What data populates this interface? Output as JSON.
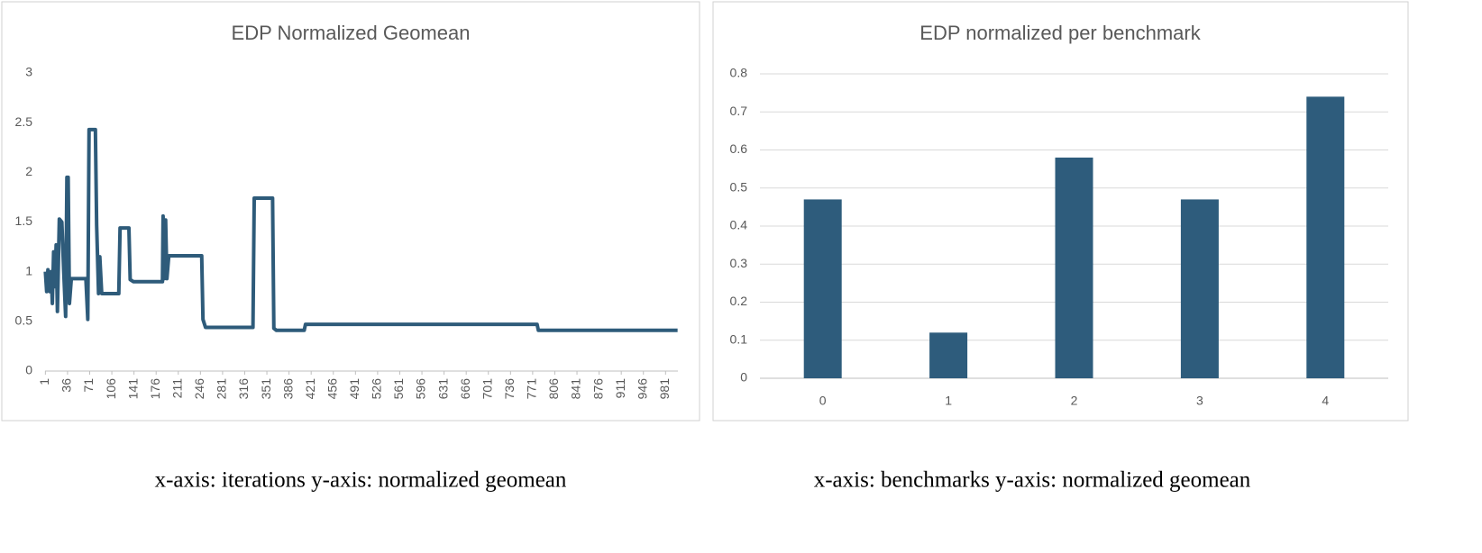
{
  "chart_data": [
    {
      "type": "line",
      "title": "EDP Normalized Geomean",
      "x": [
        1,
        3,
        5,
        8,
        10,
        12,
        14,
        16,
        18,
        20,
        23,
        27,
        30,
        33,
        35,
        37,
        39,
        42,
        65,
        68,
        70,
        80,
        82,
        85,
        87,
        90,
        117,
        119,
        133,
        135,
        140,
        186,
        187,
        189,
        191,
        193,
        196,
        248,
        250,
        254,
        329,
        331,
        360,
        362,
        366,
        410,
        412,
        778,
        780,
        1000
      ],
      "series": [
        {
          "color": "#2e5b7a",
          "values": [
            1.0,
            0.8,
            1.02,
            0.8,
            1.0,
            0.68,
            1.2,
            0.85,
            1.27,
            0.6,
            1.53,
            1.5,
            1.0,
            0.55,
            1.95,
            1.95,
            0.68,
            0.93,
            0.93,
            0.52,
            2.43,
            2.43,
            1.47,
            0.78,
            1.15,
            0.78,
            0.78,
            1.44,
            1.44,
            0.92,
            0.9,
            0.9,
            1.56,
            0.93,
            1.52,
            0.93,
            1.16,
            1.16,
            0.52,
            0.44,
            0.44,
            1.74,
            1.74,
            0.43,
            0.41,
            0.41,
            0.47,
            0.47,
            0.41,
            0.41
          ]
        }
      ],
      "xlim": [
        0.5,
        1000.5
      ],
      "xticks": [
        1,
        36,
        71,
        106,
        141,
        176,
        211,
        246,
        281,
        316,
        351,
        386,
        421,
        456,
        491,
        526,
        561,
        596,
        631,
        666,
        701,
        736,
        771,
        806,
        841,
        876,
        911,
        946,
        981
      ],
      "ylim": [
        0,
        3
      ],
      "yticks": [
        0,
        0.5,
        1,
        1.5,
        2,
        2.5,
        3
      ],
      "grid": false,
      "caption": "x-axis: iterations  y-axis: normalized geomean"
    },
    {
      "type": "bar",
      "title": "EDP normalized per benchmark",
      "categories": [
        "0",
        "1",
        "2",
        "3",
        "4"
      ],
      "values": [
        0.47,
        0.12,
        0.58,
        0.47,
        0.74
      ],
      "color": "#2e5c7c",
      "ylim": [
        0,
        0.8
      ],
      "yticks": [
        0,
        0.1,
        0.2,
        0.3,
        0.4,
        0.5,
        0.6,
        0.7,
        0.8
      ],
      "grid": true,
      "caption": "x-axis: benchmarks  y-axis: normalized geomean"
    }
  ]
}
